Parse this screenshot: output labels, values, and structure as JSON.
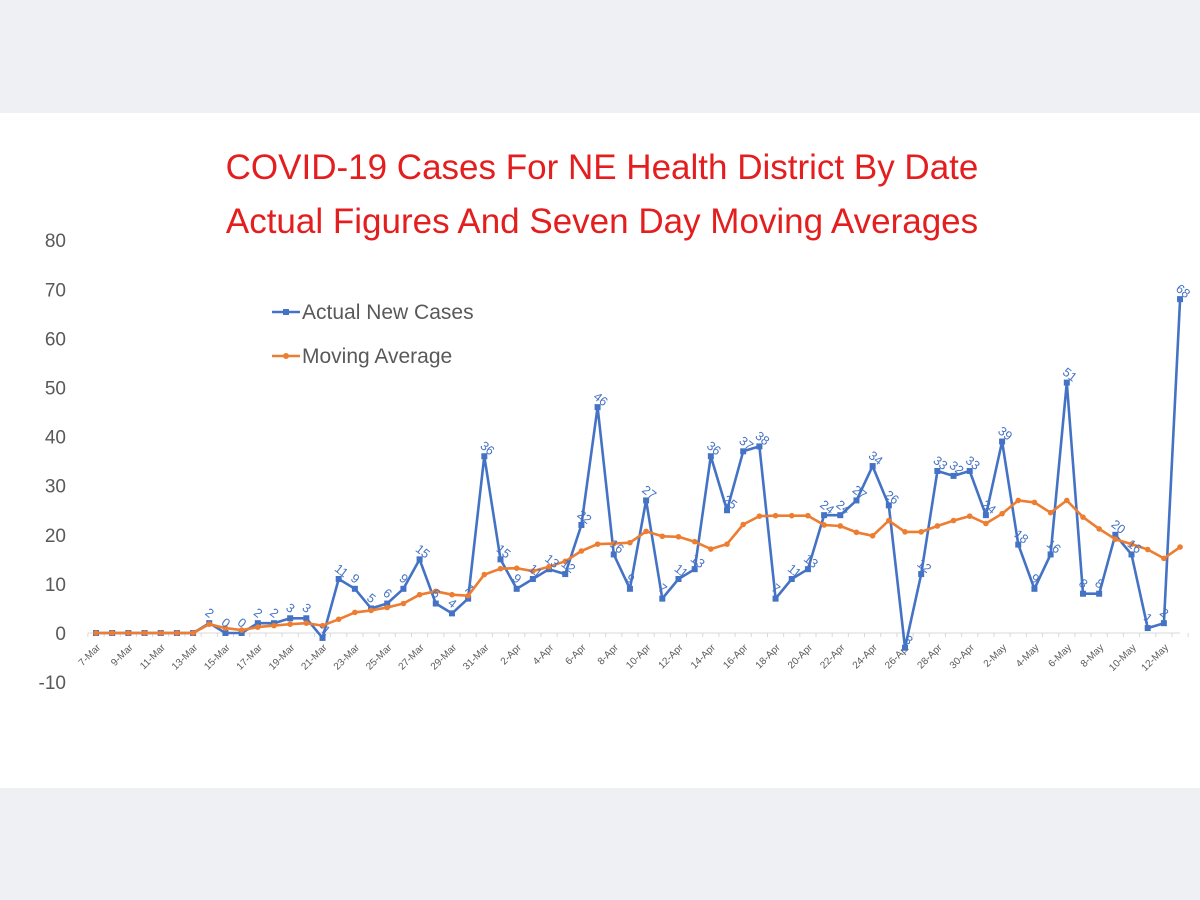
{
  "chart_data": {
    "type": "line",
    "title": "COVID-19 Cases For NE Health District By Date",
    "subtitle": "Actual Figures And Seven Day Moving Averages",
    "xlabel": "",
    "ylabel": "",
    "ylim": [
      -10,
      80
    ],
    "yticks": [
      80,
      70,
      60,
      50,
      40,
      30,
      20,
      10,
      0,
      -10
    ],
    "grid": false,
    "legend_position": "upper-left",
    "categories": [
      "7-Mar",
      "8-Mar",
      "9-Mar",
      "10-Mar",
      "11-Mar",
      "12-Mar",
      "13-Mar",
      "14-Mar",
      "15-Mar",
      "16-Mar",
      "17-Mar",
      "18-Mar",
      "19-Mar",
      "20-Mar",
      "21-Mar",
      "22-Mar",
      "23-Mar",
      "24-Mar",
      "25-Mar",
      "26-Mar",
      "27-Mar",
      "28-Mar",
      "29-Mar",
      "30-Mar",
      "31-Mar",
      "1-Apr",
      "2-Apr",
      "3-Apr",
      "4-Apr",
      "5-Apr",
      "6-Apr",
      "7-Apr",
      "8-Apr",
      "9-Apr",
      "10-Apr",
      "11-Apr",
      "12-Apr",
      "13-Apr",
      "14-Apr",
      "15-Apr",
      "16-Apr",
      "17-Apr",
      "18-Apr",
      "19-Apr",
      "20-Apr",
      "21-Apr",
      "22-Apr",
      "23-Apr",
      "24-Apr",
      "25-Apr",
      "26-Apr",
      "27-Apr",
      "28-Apr",
      "29-Apr",
      "30-Apr",
      "1-May",
      "2-May",
      "3-May",
      "4-May",
      "5-May",
      "6-May",
      "7-May",
      "8-May",
      "9-May",
      "10-May",
      "11-May",
      "12-May",
      "13-May"
    ],
    "x_tick_labels": [
      "7-Mar",
      "9-Mar",
      "11-Mar",
      "13-Mar",
      "15-Mar",
      "17-Mar",
      "19-Mar",
      "21-Mar",
      "23-Mar",
      "25-Mar",
      "27-Mar",
      "29-Mar",
      "31-Mar",
      "2-Apr",
      "4-Apr",
      "6-Apr",
      "8-Apr",
      "10-Apr",
      "12-Apr",
      "14-Apr",
      "16-Apr",
      "18-Apr",
      "20-Apr",
      "22-Apr",
      "24-Apr",
      "26-Apr",
      "28-Apr",
      "30-Apr",
      "2-May",
      "4-May",
      "6-May",
      "8-May",
      "10-May",
      "12-May"
    ],
    "series": [
      {
        "name": "Actual New Cases",
        "color": "#4472c4",
        "marker": "square",
        "show_labels": true,
        "values": [
          0,
          0,
          0,
          0,
          0,
          0,
          0,
          2,
          0,
          0,
          2,
          2,
          3,
          3,
          -1,
          11,
          9,
          5,
          6,
          9,
          15,
          6,
          4,
          7,
          36,
          15,
          9,
          11,
          13,
          12,
          22,
          46,
          16,
          9,
          27,
          7,
          11,
          13,
          36,
          25,
          37,
          38,
          7,
          11,
          13,
          24,
          24,
          27,
          34,
          26,
          -3,
          12,
          33,
          32,
          33,
          24,
          39,
          18,
          9,
          16,
          51,
          8,
          8,
          20,
          16,
          1,
          2,
          68
        ]
      },
      {
        "name": "Moving Average",
        "color": "#ed7d31",
        "marker": "circle",
        "show_labels": false,
        "values": [
          0,
          0,
          0,
          0,
          0,
          0,
          0,
          1.8,
          1.0,
          0.6,
          1.2,
          1.5,
          1.8,
          2.0,
          1.5,
          2.8,
          4.2,
          4.6,
          5.2,
          6.0,
          7.8,
          8.5,
          7.8,
          7.6,
          11.9,
          13.1,
          13.2,
          12.6,
          13.5,
          14.6,
          16.7,
          18.1,
          18.2,
          18.4,
          20.7,
          19.7,
          19.6,
          18.6,
          17.1,
          18.1,
          22.1,
          23.8,
          23.9,
          23.9,
          23.9,
          22.0,
          21.8,
          20.5,
          19.8,
          22.9,
          20.6,
          20.6,
          21.8,
          22.9,
          23.8,
          22.3,
          24.3,
          27.0,
          26.6,
          24.5,
          27.0,
          23.6,
          21.2,
          19.1,
          18.1,
          17.0,
          15.2,
          17.5
        ]
      }
    ]
  }
}
